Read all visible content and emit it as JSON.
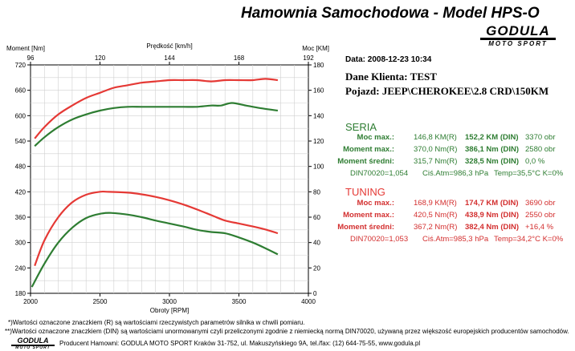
{
  "header": {
    "title": "Hamownia Samochodowa   -   Model HPS-O",
    "logo_brand": "GODULA",
    "logo_sub": "MOTO SPORT"
  },
  "info": {
    "date": "Data: 2008-12-23  10:34",
    "client": "Dane Klienta: TEST",
    "vehicle": "Pojazd: JEEP\\CHEROKEE\\2.8 CRD\\150KM"
  },
  "seria": {
    "heading": "SERIA",
    "rows": [
      {
        "label": "Moc max.:",
        "c1": "146,8 KM(R)",
        "c2": "152,2 KM (DIN)",
        "c3": "3370 obr"
      },
      {
        "label": "Moment max.:",
        "c1": "370,0 Nm(R)",
        "c2": "386,1 Nm (DIN)",
        "c3": "2580 obr"
      },
      {
        "label": "Moment średni:",
        "c1": "315,7 Nm(R)",
        "c2": "328,5 Nm (DIN)",
        "c3": "0,0 %"
      }
    ],
    "din": "DIN70020=1,054",
    "atm": "Ciś.Atm=986,3 hPa",
    "temp": "Temp=35,5°C  K=0%"
  },
  "tuning": {
    "heading": "TUNING",
    "rows": [
      {
        "label": "Moc max.:",
        "c1": "168,9 KM(R)",
        "c2": "174,7 KM (DIN)",
        "c3": "3690 obr"
      },
      {
        "label": "Moment max.:",
        "c1": "420,5 Nm(R)",
        "c2": "438,9 Nm (DIN)",
        "c3": "2550 obr"
      },
      {
        "label": "Moment średni:",
        "c1": "367,2 Nm(R)",
        "c2": "382,4 Nm (DIN)",
        "c3": "+16,4 %"
      }
    ],
    "din": "DIN70020=1,053",
    "atm": "Ciś.Atm=985,3 hPa",
    "temp": "Temp=34,2°C  K=0%"
  },
  "footer": {
    "note1": "*)Wartości oznaczone znaczkiem (R) są wartościami rzeczywistych parametrów silnika w chwili pomiaru.",
    "note2": "**)Wartości oznaczone znaczkiem (DIN) są wartościami unormowanymi czyli przeliczonymi zgodnie z niemiecką normą DIN70020, używaną przez większość europejskich producentów samochodów.",
    "producer": "Producent Hamowni: GODULA MOTO SPORT Kraków 31-752, ul. Makuszyńskiego 9A, tel./fax: (12) 644-75-55, www.godula.pl",
    "logo_brand": "GODULA",
    "logo_sub": "MOTO SPORT"
  },
  "colors": {
    "seria": "#2e7d32",
    "tuning": "#e53935"
  },
  "chart_data": {
    "type": "line",
    "xlabel": "Obroty [RPM]",
    "x2label": "Prędkość [km/h]",
    "ylabel": "Moment [Nm]",
    "y2label": "Moc [KM]",
    "xlim": [
      2000,
      4000
    ],
    "ylim": [
      180,
      720
    ],
    "y2lim": [
      0,
      180
    ],
    "x2lim": [
      96,
      192
    ],
    "x_ticks": [
      2000,
      2500,
      3000,
      3500,
      4000
    ],
    "x2_ticks": [
      96,
      120,
      144,
      168,
      192
    ],
    "y_ticks": [
      180,
      240,
      300,
      360,
      420,
      480,
      540,
      600,
      660,
      720
    ],
    "y2_ticks": [
      0,
      20,
      40,
      60,
      80,
      100,
      120,
      140,
      160,
      180
    ],
    "grid": true,
    "series": [
      {
        "name": "SERIA",
        "measure": "power",
        "axis": "right",
        "color": "#2e7d32",
        "x": [
          2030,
          2100,
          2200,
          2300,
          2400,
          2500,
          2600,
          2700,
          2800,
          2900,
          3000,
          3100,
          3200,
          3300,
          3370,
          3450,
          3550,
          3650,
          3780
        ],
        "y": [
          116,
          123,
          131,
          137,
          141,
          144,
          146,
          147,
          147,
          147,
          147,
          147,
          147,
          148,
          148,
          150,
          148,
          146,
          144
        ]
      },
      {
        "name": "TUNING",
        "measure": "power",
        "axis": "right",
        "color": "#e53935",
        "x": [
          2030,
          2100,
          2200,
          2300,
          2400,
          2500,
          2600,
          2700,
          2800,
          2900,
          3000,
          3100,
          3200,
          3300,
          3400,
          3500,
          3600,
          3690,
          3780
        ],
        "y": [
          122,
          131,
          141,
          148,
          154,
          158,
          162,
          164,
          166,
          167,
          168,
          168,
          168,
          167,
          168,
          168,
          168,
          169,
          168
        ]
      },
      {
        "name": "SERIA",
        "measure": "torque",
        "axis": "left",
        "color": "#2e7d32",
        "x": [
          2010,
          2100,
          2200,
          2300,
          2400,
          2500,
          2580,
          2700,
          2800,
          2900,
          3000,
          3100,
          3200,
          3300,
          3400,
          3500,
          3600,
          3700,
          3780
        ],
        "y": [
          195,
          250,
          300,
          335,
          358,
          368,
          370,
          366,
          360,
          352,
          345,
          338,
          330,
          325,
          322,
          312,
          300,
          285,
          272
        ]
      },
      {
        "name": "TUNING",
        "measure": "torque",
        "axis": "left",
        "color": "#e53935",
        "x": [
          2030,
          2100,
          2200,
          2300,
          2400,
          2500,
          2550,
          2700,
          2800,
          2900,
          3000,
          3100,
          3200,
          3300,
          3400,
          3500,
          3600,
          3700,
          3780
        ],
        "y": [
          245,
          305,
          360,
          395,
          413,
          420,
          420,
          418,
          414,
          408,
          400,
          390,
          378,
          365,
          352,
          345,
          338,
          330,
          322
        ]
      }
    ]
  }
}
